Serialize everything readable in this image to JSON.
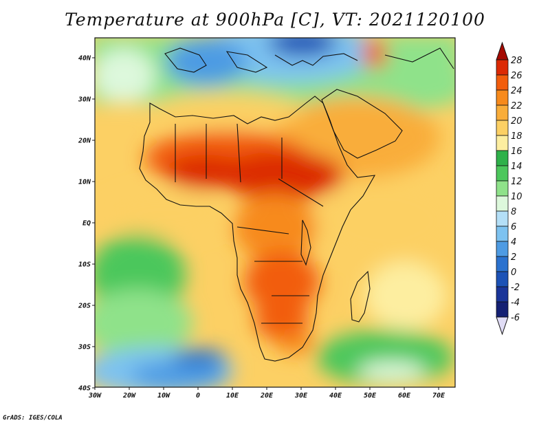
{
  "title": "Temperature at 900hPa [C], VT: 2021120100",
  "credit": "GrADS: IGES/COLA",
  "map": {
    "lon_range": [
      -30,
      76
    ],
    "lat_range": [
      -40,
      46
    ],
    "lon_ticks": [
      "30W",
      "20W",
      "10W",
      "0",
      "10E",
      "20E",
      "30E",
      "40E",
      "50E",
      "60E",
      "70E"
    ],
    "lat_ticks": [
      "40N",
      "30N",
      "20N",
      "10N",
      "EQ",
      "10S",
      "20S",
      "30S",
      "40S"
    ],
    "colorbar": {
      "labels": [
        "28",
        "26",
        "24",
        "22",
        "20",
        "18",
        "16",
        "14",
        "12",
        "10",
        "8",
        "6",
        "4",
        "2",
        "0",
        "-2",
        "-4",
        "-6"
      ],
      "colors": [
        "#a50a02",
        "#dc2a04",
        "#f25d0c",
        "#f78a1c",
        "#f9ad3a",
        "#fcd064",
        "#fdeea0",
        "#2fb14a",
        "#4cc75c",
        "#8fe28a",
        "#ddf8dc",
        "#b4dff7",
        "#7dc2f0",
        "#4e9be3",
        "#2b72cf",
        "#1c52b6",
        "#1a3599",
        "#142073"
      ]
    }
  }
}
